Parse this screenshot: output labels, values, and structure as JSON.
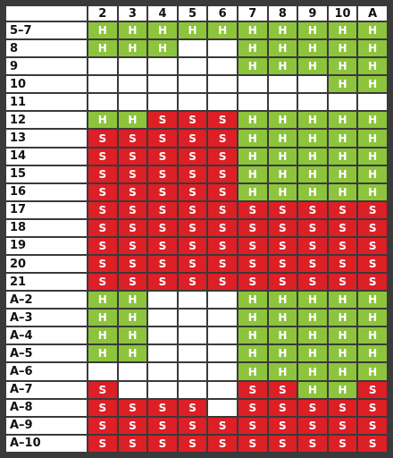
{
  "columns": [
    "2",
    "3",
    "4",
    "5",
    "6",
    "7",
    "8",
    "9",
    "10",
    "A"
  ],
  "colors": {
    "hit": "#8cc43c",
    "stand": "#dd1f26",
    "empty": "#ffffff",
    "grid_lines": "#3a3a3a"
  },
  "rows": [
    {
      "label": "5–7",
      "cells": [
        "H",
        "H",
        "H",
        "H",
        "H",
        "H",
        "H",
        "H",
        "H",
        "H"
      ]
    },
    {
      "label": "8",
      "cells": [
        "H",
        "H",
        "H",
        "",
        "",
        "H",
        "H",
        "H",
        "H",
        "H"
      ]
    },
    {
      "label": "9",
      "cells": [
        "",
        "",
        "",
        "",
        "",
        "H",
        "H",
        "H",
        "H",
        "H"
      ]
    },
    {
      "label": "10",
      "cells": [
        "",
        "",
        "",
        "",
        "",
        "",
        "",
        "",
        "H",
        "H"
      ]
    },
    {
      "label": "11",
      "cells": [
        "",
        "",
        "",
        "",
        "",
        "",
        "",
        "",
        "",
        ""
      ]
    },
    {
      "label": "12",
      "cells": [
        "H",
        "H",
        "S",
        "S",
        "S",
        "H",
        "H",
        "H",
        "H",
        "H"
      ]
    },
    {
      "label": "13",
      "cells": [
        "S",
        "S",
        "S",
        "S",
        "S",
        "H",
        "H",
        "H",
        "H",
        "H"
      ]
    },
    {
      "label": "14",
      "cells": [
        "S",
        "S",
        "S",
        "S",
        "S",
        "H",
        "H",
        "H",
        "H",
        "H"
      ]
    },
    {
      "label": "15",
      "cells": [
        "S",
        "S",
        "S",
        "S",
        "S",
        "H",
        "H",
        "H",
        "H",
        "H"
      ]
    },
    {
      "label": "16",
      "cells": [
        "S",
        "S",
        "S",
        "S",
        "S",
        "H",
        "H",
        "H",
        "H",
        "H"
      ]
    },
    {
      "label": "17",
      "cells": [
        "S",
        "S",
        "S",
        "S",
        "S",
        "S",
        "S",
        "S",
        "S",
        "S"
      ]
    },
    {
      "label": "18",
      "cells": [
        "S",
        "S",
        "S",
        "S",
        "S",
        "S",
        "S",
        "S",
        "S",
        "S"
      ]
    },
    {
      "label": "19",
      "cells": [
        "S",
        "S",
        "S",
        "S",
        "S",
        "S",
        "S",
        "S",
        "S",
        "S"
      ]
    },
    {
      "label": "20",
      "cells": [
        "S",
        "S",
        "S",
        "S",
        "S",
        "S",
        "S",
        "S",
        "S",
        "S"
      ]
    },
    {
      "label": "21",
      "cells": [
        "S",
        "S",
        "S",
        "S",
        "S",
        "S",
        "S",
        "S",
        "S",
        "S"
      ]
    },
    {
      "label": "A–2",
      "cells": [
        "H",
        "H",
        "",
        "",
        "",
        "H",
        "H",
        "H",
        "H",
        "H"
      ]
    },
    {
      "label": "A–3",
      "cells": [
        "H",
        "H",
        "",
        "",
        "",
        "H",
        "H",
        "H",
        "H",
        "H"
      ]
    },
    {
      "label": "A–4",
      "cells": [
        "H",
        "H",
        "",
        "",
        "",
        "H",
        "H",
        "H",
        "H",
        "H"
      ]
    },
    {
      "label": "A–5",
      "cells": [
        "H",
        "H",
        "",
        "",
        "",
        "H",
        "H",
        "H",
        "H",
        "H"
      ]
    },
    {
      "label": "A–6",
      "cells": [
        "",
        "",
        "",
        "",
        "",
        "H",
        "H",
        "H",
        "H",
        "H"
      ]
    },
    {
      "label": "A–7",
      "cells": [
        "S",
        "",
        "",
        "",
        "",
        "S",
        "S",
        "H",
        "H",
        "S"
      ]
    },
    {
      "label": "A–8",
      "cells": [
        "S",
        "S",
        "S",
        "S",
        "",
        "S",
        "S",
        "S",
        "S",
        "S"
      ]
    },
    {
      "label": "A–9",
      "cells": [
        "S",
        "S",
        "S",
        "S",
        "S",
        "S",
        "S",
        "S",
        "S",
        "S"
      ]
    },
    {
      "label": "A–10",
      "cells": [
        "S",
        "S",
        "S",
        "S",
        "S",
        "S",
        "S",
        "S",
        "S",
        "S"
      ]
    }
  ]
}
